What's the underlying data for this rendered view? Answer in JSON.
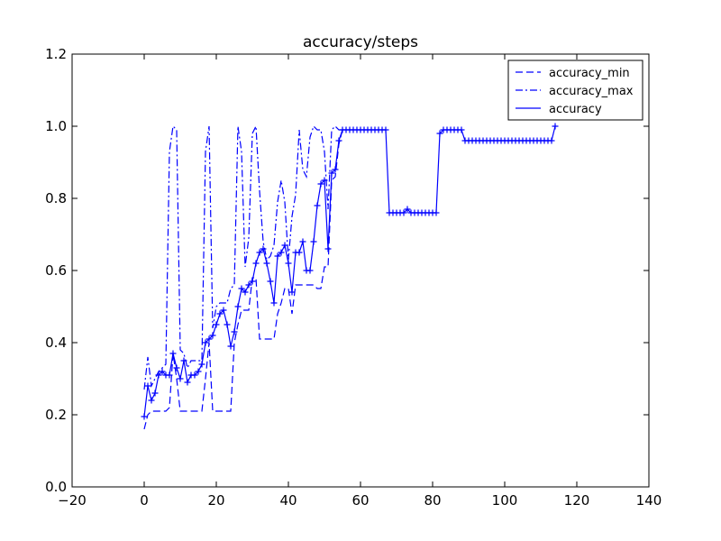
{
  "chart_data": {
    "type": "line",
    "title": "accuracy/steps",
    "xlabel": "",
    "ylabel": "",
    "xlim": [
      -20,
      140
    ],
    "ylim": [
      0.0,
      1.2
    ],
    "x_ticks": [
      -20,
      0,
      20,
      40,
      60,
      80,
      100,
      120,
      140
    ],
    "x_tick_labels": [
      "−20",
      "0",
      "20",
      "40",
      "60",
      "80",
      "100",
      "120",
      "140"
    ],
    "y_ticks": [
      0.0,
      0.2,
      0.4,
      0.6,
      0.8,
      1.0,
      1.2
    ],
    "y_tick_labels": [
      "0.0",
      "0.2",
      "0.4",
      "0.6",
      "0.8",
      "1.0",
      "1.2"
    ],
    "grid": false,
    "legend_position": "top-right",
    "series": [
      {
        "name": "accuracy_min",
        "style": "dashed",
        "marker": "none",
        "color": "#0000ff",
        "points": [
          [
            0,
            0.16
          ],
          [
            1,
            0.2
          ],
          [
            2,
            0.21
          ],
          [
            4,
            0.21
          ],
          [
            6,
            0.21
          ],
          [
            7,
            0.22
          ],
          [
            8,
            0.37
          ],
          [
            9,
            0.3
          ],
          [
            10,
            0.21
          ],
          [
            12,
            0.21
          ],
          [
            14,
            0.21
          ],
          [
            16,
            0.21
          ],
          [
            17,
            0.3
          ],
          [
            18,
            0.4
          ],
          [
            19,
            0.21
          ],
          [
            21,
            0.21
          ],
          [
            23,
            0.21
          ],
          [
            24,
            0.21
          ],
          [
            25,
            0.4
          ],
          [
            26,
            0.45
          ],
          [
            27,
            0.49
          ],
          [
            28,
            0.49
          ],
          [
            29,
            0.49
          ],
          [
            30,
            0.58
          ],
          [
            31,
            0.58
          ],
          [
            32,
            0.41
          ],
          [
            34,
            0.41
          ],
          [
            36,
            0.41
          ],
          [
            37,
            0.48
          ],
          [
            38,
            0.51
          ],
          [
            39,
            0.55
          ],
          [
            40,
            0.55
          ],
          [
            41,
            0.48
          ],
          [
            42,
            0.56
          ],
          [
            43,
            0.56
          ],
          [
            44,
            0.56
          ],
          [
            45,
            0.56
          ],
          [
            46,
            0.56
          ],
          [
            47,
            0.56
          ],
          [
            48,
            0.55
          ],
          [
            49,
            0.55
          ],
          [
            50,
            0.61
          ],
          [
            51,
            0.61
          ],
          [
            52,
            0.85
          ],
          [
            53,
            0.86
          ],
          [
            54,
            0.95
          ],
          [
            55,
            0.99
          ]
        ]
      },
      {
        "name": "accuracy_max",
        "style": "dashdot",
        "marker": "none",
        "color": "#0000ff",
        "points": [
          [
            0,
            0.27
          ],
          [
            1,
            0.36
          ],
          [
            2,
            0.28
          ],
          [
            3,
            0.3
          ],
          [
            4,
            0.32
          ],
          [
            5,
            0.33
          ],
          [
            6,
            0.34
          ],
          [
            7,
            0.93
          ],
          [
            8,
            1.0
          ],
          [
            9,
            0.99
          ],
          [
            10,
            0.38
          ],
          [
            11,
            0.37
          ],
          [
            12,
            0.33
          ],
          [
            13,
            0.35
          ],
          [
            14,
            0.35
          ],
          [
            15,
            0.35
          ],
          [
            16,
            0.35
          ],
          [
            17,
            0.93
          ],
          [
            18,
            1.0
          ],
          [
            19,
            0.44
          ],
          [
            20,
            0.5
          ],
          [
            21,
            0.51
          ],
          [
            22,
            0.51
          ],
          [
            23,
            0.51
          ],
          [
            24,
            0.55
          ],
          [
            25,
            0.56
          ],
          [
            26,
            1.0
          ],
          [
            27,
            0.93
          ],
          [
            28,
            0.61
          ],
          [
            29,
            0.69
          ],
          [
            30,
            0.98
          ],
          [
            31,
            1.0
          ],
          [
            32,
            0.82
          ],
          [
            33,
            0.68
          ],
          [
            34,
            0.63
          ],
          [
            35,
            0.64
          ],
          [
            36,
            0.67
          ],
          [
            37,
            0.79
          ],
          [
            38,
            0.85
          ],
          [
            39,
            0.79
          ],
          [
            40,
            0.63
          ],
          [
            41,
            0.75
          ],
          [
            42,
            0.81
          ],
          [
            43,
            0.99
          ],
          [
            44,
            0.88
          ],
          [
            45,
            0.86
          ],
          [
            46,
            0.97
          ],
          [
            47,
            1.0
          ],
          [
            48,
            0.99
          ],
          [
            49,
            0.99
          ],
          [
            50,
            0.93
          ],
          [
            51,
            0.77
          ],
          [
            52,
            0.99
          ],
          [
            53,
            1.0
          ],
          [
            54,
            0.99
          ],
          [
            55,
            0.99
          ]
        ]
      },
      {
        "name": "accuracy",
        "style": "solid",
        "marker": "+",
        "color": "#0000ff",
        "points": [
          [
            0,
            0.195
          ],
          [
            1,
            0.28
          ],
          [
            2,
            0.24
          ],
          [
            3,
            0.26
          ],
          [
            4,
            0.31
          ],
          [
            5,
            0.32
          ],
          [
            6,
            0.31
          ],
          [
            7,
            0.31
          ],
          [
            8,
            0.37
          ],
          [
            9,
            0.33
          ],
          [
            10,
            0.3
          ],
          [
            11,
            0.35
          ],
          [
            12,
            0.29
          ],
          [
            13,
            0.31
          ],
          [
            14,
            0.31
          ],
          [
            15,
            0.32
          ],
          [
            16,
            0.34
          ],
          [
            17,
            0.4
          ],
          [
            18,
            0.41
          ],
          [
            19,
            0.42
          ],
          [
            20,
            0.45
          ],
          [
            21,
            0.48
          ],
          [
            22,
            0.49
          ],
          [
            23,
            0.45
          ],
          [
            24,
            0.39
          ],
          [
            25,
            0.43
          ],
          [
            26,
            0.5
          ],
          [
            27,
            0.55
          ],
          [
            28,
            0.54
          ],
          [
            29,
            0.56
          ],
          [
            30,
            0.57
          ],
          [
            31,
            0.62
          ],
          [
            32,
            0.65
          ],
          [
            33,
            0.66
          ],
          [
            34,
            0.62
          ],
          [
            35,
            0.57
          ],
          [
            36,
            0.51
          ],
          [
            37,
            0.64
          ],
          [
            38,
            0.65
          ],
          [
            39,
            0.67
          ],
          [
            40,
            0.62
          ],
          [
            41,
            0.54
          ],
          [
            42,
            0.65
          ],
          [
            43,
            0.65
          ],
          [
            44,
            0.68
          ],
          [
            45,
            0.6
          ],
          [
            46,
            0.6
          ],
          [
            47,
            0.68
          ],
          [
            48,
            0.78
          ],
          [
            49,
            0.84
          ],
          [
            50,
            0.85
          ],
          [
            51,
            0.66
          ],
          [
            52,
            0.87
          ],
          [
            53,
            0.88
          ],
          [
            54,
            0.96
          ],
          [
            55,
            0.99
          ],
          [
            56,
            0.99
          ],
          [
            57,
            0.99
          ],
          [
            58,
            0.99
          ],
          [
            59,
            0.99
          ],
          [
            60,
            0.99
          ],
          [
            61,
            0.99
          ],
          [
            62,
            0.99
          ],
          [
            63,
            0.99
          ],
          [
            64,
            0.99
          ],
          [
            65,
            0.99
          ],
          [
            66,
            0.99
          ],
          [
            67,
            0.99
          ],
          [
            68,
            0.76
          ],
          [
            69,
            0.76
          ],
          [
            70,
            0.76
          ],
          [
            71,
            0.76
          ],
          [
            72,
            0.76
          ],
          [
            73,
            0.77
          ],
          [
            74,
            0.76
          ],
          [
            75,
            0.76
          ],
          [
            76,
            0.76
          ],
          [
            77,
            0.76
          ],
          [
            78,
            0.76
          ],
          [
            79,
            0.76
          ],
          [
            80,
            0.76
          ],
          [
            81,
            0.76
          ],
          [
            82,
            0.98
          ],
          [
            83,
            0.99
          ],
          [
            84,
            0.99
          ],
          [
            85,
            0.99
          ],
          [
            86,
            0.99
          ],
          [
            87,
            0.99
          ],
          [
            88,
            0.99
          ],
          [
            89,
            0.96
          ],
          [
            90,
            0.96
          ],
          [
            91,
            0.96
          ],
          [
            92,
            0.96
          ],
          [
            93,
            0.96
          ],
          [
            94,
            0.96
          ],
          [
            95,
            0.96
          ],
          [
            96,
            0.96
          ],
          [
            97,
            0.96
          ],
          [
            98,
            0.96
          ],
          [
            99,
            0.96
          ],
          [
            100,
            0.96
          ],
          [
            101,
            0.96
          ],
          [
            102,
            0.96
          ],
          [
            103,
            0.96
          ],
          [
            104,
            0.96
          ],
          [
            105,
            0.96
          ],
          [
            106,
            0.96
          ],
          [
            107,
            0.96
          ],
          [
            108,
            0.96
          ],
          [
            109,
            0.96
          ],
          [
            110,
            0.96
          ],
          [
            111,
            0.96
          ],
          [
            112,
            0.96
          ],
          [
            113,
            0.96
          ],
          [
            114,
            1.0
          ]
        ]
      }
    ]
  }
}
